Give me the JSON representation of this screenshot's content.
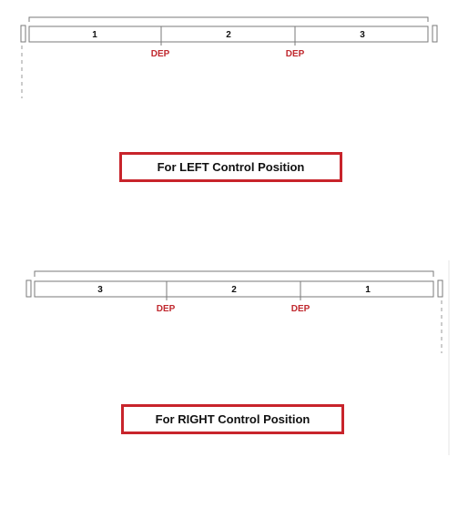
{
  "left_config": {
    "segments": [
      "1",
      "2",
      "3"
    ],
    "dep_labels": [
      "DEP",
      "DEP"
    ],
    "caption": "For LEFT Control Position"
  },
  "right_config": {
    "segments": [
      "3",
      "2",
      "1"
    ],
    "dep_labels": [
      "DEP",
      "DEP"
    ],
    "caption": "For RIGHT Control Position"
  },
  "colors": {
    "accent_red": "#c8242b",
    "dep_text_red": "#c0282e",
    "line_gray": "#7a7a7a"
  }
}
